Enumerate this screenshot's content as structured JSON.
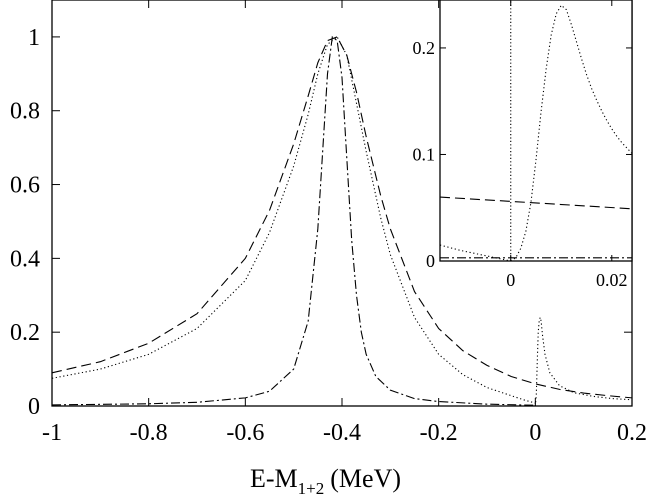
{
  "chart_data": [
    {
      "type": "line",
      "role": "main",
      "xlabel": "E-M",
      "xlabel_subscript": "1+2",
      "xlabel_unit": "(MeV)",
      "ylabel": "",
      "xlim": [
        -1.0,
        0.2
      ],
      "ylim": [
        0.0,
        1.1
      ],
      "x_ticks": [
        -1,
        -0.8,
        -0.6,
        -0.4,
        -0.2,
        0,
        0.2
      ],
      "x_tick_labels": [
        "-1",
        "-0.8",
        "-0.6",
        "-0.4",
        "-0.2",
        "0",
        "0.2"
      ],
      "y_ticks": [
        0,
        0.2,
        0.4,
        0.6,
        0.8,
        1
      ],
      "y_tick_labels": [
        "0",
        "0.2",
        "0.4",
        "0.6",
        "0.8",
        "1"
      ],
      "grid": false,
      "legend": "none",
      "series": [
        {
          "style": "dashed-wide",
          "x": [
            -1.0,
            -0.9,
            -0.8,
            -0.7,
            -0.6,
            -0.55,
            -0.5,
            -0.47,
            -0.45,
            -0.43,
            -0.41,
            -0.39,
            -0.37,
            -0.35,
            -0.32,
            -0.3,
            -0.25,
            -0.2,
            -0.15,
            -0.1,
            -0.05,
            0.0,
            0.05,
            0.1,
            0.15,
            0.2
          ],
          "values": [
            0.09,
            0.12,
            0.17,
            0.25,
            0.4,
            0.53,
            0.71,
            0.84,
            0.93,
            0.99,
            1.0,
            0.95,
            0.85,
            0.73,
            0.57,
            0.48,
            0.31,
            0.21,
            0.15,
            0.11,
            0.08,
            0.06,
            0.045,
            0.035,
            0.028,
            0.022
          ]
        },
        {
          "style": "dotted-wide",
          "x": [
            -1.0,
            -0.9,
            -0.8,
            -0.7,
            -0.6,
            -0.55,
            -0.5,
            -0.47,
            -0.45,
            -0.43,
            -0.41,
            -0.39,
            -0.37,
            -0.35,
            -0.32,
            -0.3,
            -0.25,
            -0.2,
            -0.15,
            -0.1,
            -0.05,
            -0.02,
            0.0,
            0.001
          ],
          "values": [
            0.075,
            0.1,
            0.14,
            0.21,
            0.34,
            0.47,
            0.65,
            0.79,
            0.9,
            0.98,
            1.0,
            0.95,
            0.82,
            0.69,
            0.51,
            0.41,
            0.24,
            0.14,
            0.085,
            0.05,
            0.028,
            0.015,
            0.008,
            0.0
          ]
        },
        {
          "style": "dashdot-narrow",
          "x": [
            -1.0,
            -0.8,
            -0.7,
            -0.6,
            -0.55,
            -0.5,
            -0.47,
            -0.45,
            -0.44,
            -0.43,
            -0.42,
            -0.41,
            -0.4,
            -0.39,
            -0.38,
            -0.37,
            -0.36,
            -0.35,
            -0.33,
            -0.3,
            -0.25,
            -0.2,
            -0.1,
            0.0
          ],
          "values": [
            0.003,
            0.006,
            0.01,
            0.022,
            0.04,
            0.1,
            0.23,
            0.48,
            0.69,
            0.9,
            1.0,
            0.99,
            0.89,
            0.67,
            0.45,
            0.3,
            0.2,
            0.14,
            0.08,
            0.043,
            0.02,
            0.012,
            0.005,
            0.002
          ]
        },
        {
          "style": "dotted-threshold",
          "x": [
            0.0,
            0.002,
            0.004,
            0.006,
            0.008,
            0.01,
            0.012,
            0.015,
            0.02,
            0.03,
            0.05,
            0.08,
            0.12,
            0.16,
            0.2
          ],
          "values": [
            0.0,
            0.03,
            0.12,
            0.2,
            0.23,
            0.24,
            0.23,
            0.19,
            0.14,
            0.09,
            0.055,
            0.036,
            0.026,
            0.02,
            0.017
          ]
        }
      ]
    },
    {
      "type": "line",
      "role": "inset",
      "xlim": [
        -0.014,
        0.024
      ],
      "ylim": [
        0.0,
        0.245
      ],
      "x_ticks": [
        0,
        0.02
      ],
      "x_tick_labels": [
        "0",
        "0.02"
      ],
      "y_ticks": [
        0,
        0.1,
        0.2
      ],
      "y_tick_labels": [
        "0",
        "0.1",
        "0.2"
      ],
      "series": [
        {
          "style": "dashed",
          "x": [
            -0.014,
            0.024
          ],
          "values": [
            0.06,
            0.049
          ]
        },
        {
          "style": "dotted",
          "x": [
            -0.014,
            -0.01,
            -0.006,
            -0.003,
            -0.001,
            0.0
          ],
          "values": [
            0.015,
            0.01,
            0.006,
            0.003,
            0.001,
            0.0
          ]
        },
        {
          "style": "dotted-vertical",
          "x": [
            0.0,
            0.0
          ],
          "values": [
            0.0,
            0.245
          ]
        },
        {
          "style": "dotted",
          "x": [
            0.0,
            0.001,
            0.002,
            0.003,
            0.004,
            0.005,
            0.006,
            0.007,
            0.008,
            0.009,
            0.01,
            0.011,
            0.012,
            0.013,
            0.014,
            0.015,
            0.016,
            0.017,
            0.018,
            0.019,
            0.02,
            0.021,
            0.022,
            0.023,
            0.024
          ],
          "values": [
            0.0,
            0.003,
            0.012,
            0.028,
            0.055,
            0.095,
            0.14,
            0.18,
            0.212,
            0.232,
            0.24,
            0.236,
            0.222,
            0.206,
            0.19,
            0.175,
            0.162,
            0.151,
            0.141,
            0.132,
            0.124,
            0.117,
            0.111,
            0.106,
            0.101
          ]
        },
        {
          "style": "dashdot",
          "x": [
            -0.014,
            0.024
          ],
          "values": [
            0.003,
            0.003
          ]
        }
      ]
    }
  ]
}
